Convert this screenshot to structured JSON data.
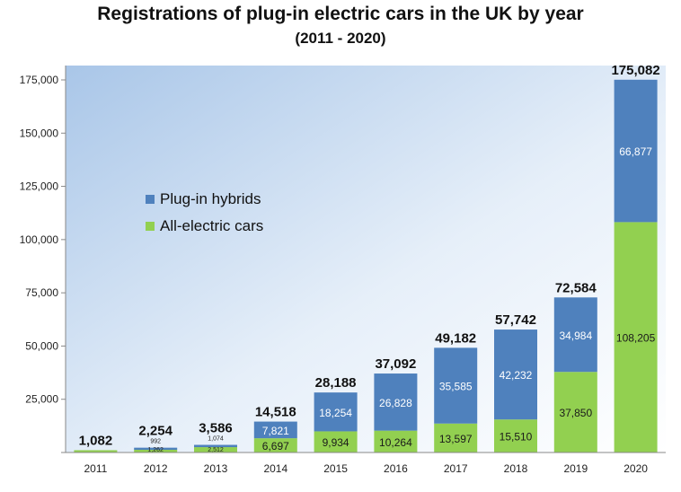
{
  "chart_data": {
    "type": "bar",
    "stacked": true,
    "title": "Registrations of plug-in electric cars in the UK by year",
    "subtitle": "(2011 - 2020)",
    "categories": [
      "2011",
      "2012",
      "2013",
      "2014",
      "2015",
      "2016",
      "2017",
      "2018",
      "2019",
      "2020"
    ],
    "series": [
      {
        "name": "All-electric cars",
        "color": "#92d050",
        "values": [
          1082,
          1262,
          2512,
          6697,
          9934,
          10264,
          13597,
          15510,
          37850,
          108205
        ],
        "labels": [
          "",
          "1,262",
          "2,512",
          "6,697",
          "9,934",
          "10,264",
          "13,597",
          "15,510",
          "37,850",
          "108,205"
        ]
      },
      {
        "name": "Plug-in hybrids",
        "color": "#4f81bd",
        "values": [
          0,
          992,
          1074,
          7821,
          18254,
          26828,
          35585,
          42232,
          34984,
          66877
        ],
        "labels": [
          "",
          "992",
          "1,074",
          "7,821",
          "18,254",
          "26,828",
          "35,585",
          "42,232",
          "34,984",
          "66,877"
        ]
      }
    ],
    "totals": [
      1082,
      2254,
      3586,
      14518,
      28188,
      37092,
      49182,
      57742,
      72584,
      175082
    ],
    "total_labels": [
      "1,082",
      "2,254",
      "3,586",
      "14,518",
      "28,188",
      "37,092",
      "49,182",
      "57,742",
      "72,584",
      "175,082"
    ],
    "ylim": [
      0,
      175000
    ],
    "yticks": [
      0,
      25000,
      50000,
      75000,
      100000,
      125000,
      150000,
      175000
    ],
    "ytick_labels": [
      "",
      "25,000",
      "50,000",
      "75,000",
      "100,000",
      "125,000",
      "150,000",
      "175,000"
    ],
    "legend": {
      "placement": "upper-left",
      "entries": [
        "Plug-in hybrids",
        "All-electric cars"
      ]
    },
    "grid": false
  }
}
